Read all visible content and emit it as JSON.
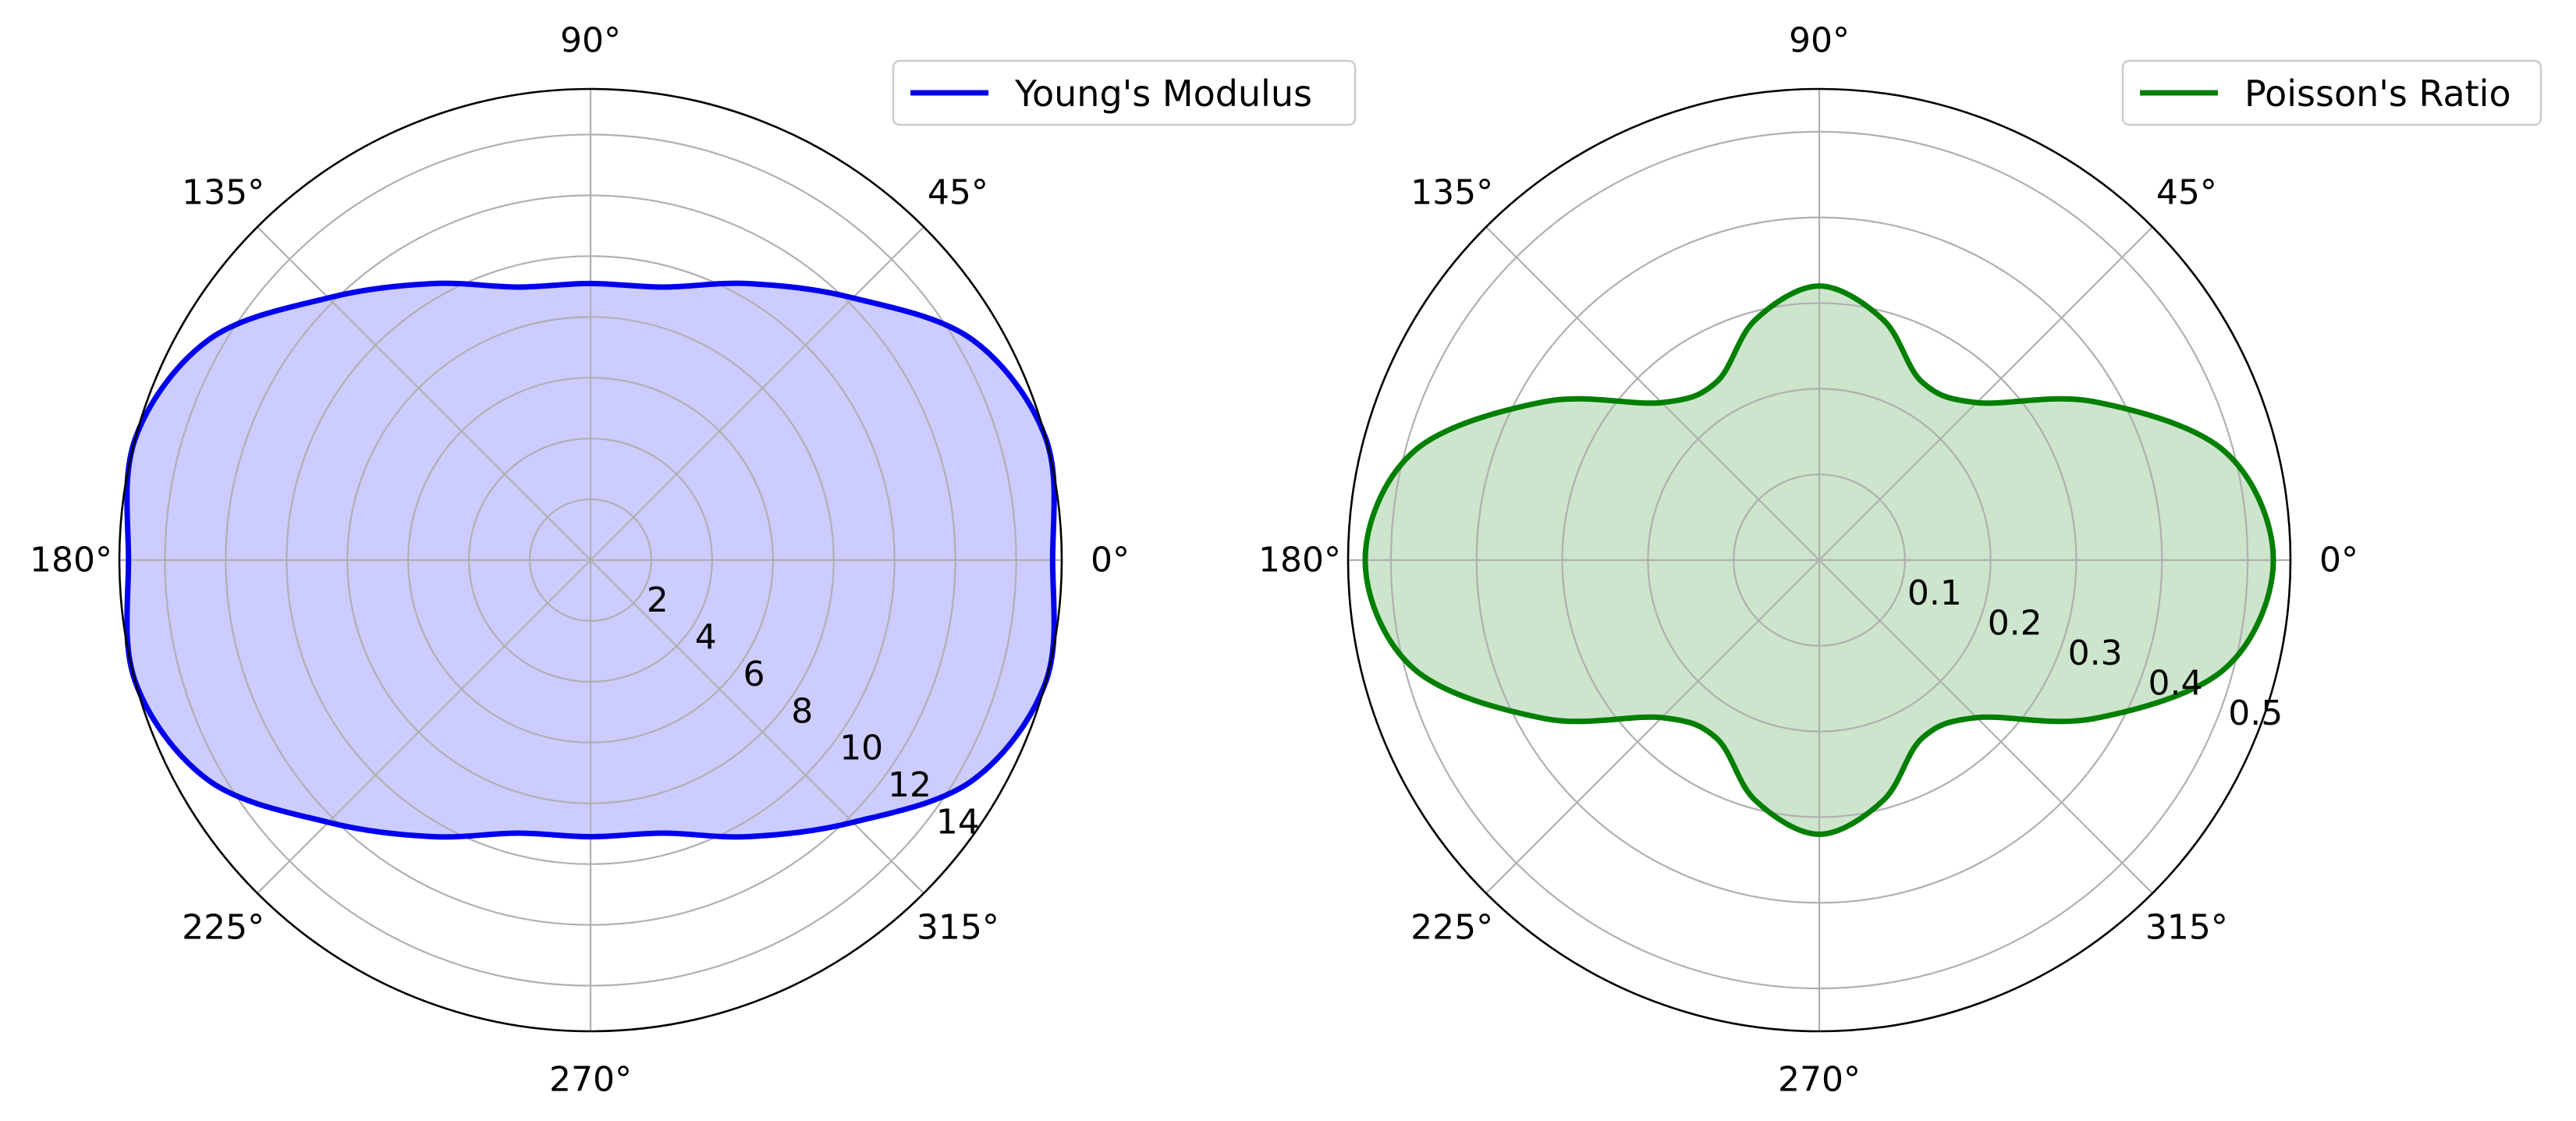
{
  "chart_data": [
    {
      "type": "polar",
      "fill": true,
      "line_color": "#0000ee",
      "fill_color": "#ccccff",
      "theta_ticks_deg": [
        0,
        45,
        90,
        135,
        180,
        225,
        270,
        315
      ],
      "theta_tick_labels": [
        "0°",
        "45°",
        "90°",
        "135°",
        "180°",
        "225°",
        "270°",
        "315°"
      ],
      "rlim": [
        0,
        15.5
      ],
      "r_ticks": [
        2,
        4,
        6,
        8,
        10,
        12,
        14
      ],
      "r_tick_labels": [
        "2",
        "4",
        "6",
        "8",
        "10",
        "12",
        "14"
      ],
      "grid": true,
      "legend": {
        "label": "Young's Modulus",
        "placement": "top-right"
      },
      "series": [
        {
          "name": "Young's Modulus",
          "theta_deg": [
            0,
            15,
            30,
            45,
            60,
            75,
            90,
            105,
            120,
            135,
            150,
            165,
            180,
            195,
            210,
            225,
            240,
            255,
            270,
            285,
            300,
            315,
            330,
            345,
            360
          ],
          "r": [
            15.2,
            15.5,
            14.5,
            12.2,
            10.5,
            9.3,
            9.1,
            9.3,
            10.5,
            12.2,
            14.5,
            15.5,
            15.2,
            15.5,
            14.5,
            12.2,
            10.5,
            9.3,
            9.1,
            9.3,
            10.5,
            12.2,
            14.5,
            15.5,
            15.2
          ]
        }
      ]
    },
    {
      "type": "polar",
      "fill": true,
      "line_color": "#007f00",
      "fill_color": "#cce5cc",
      "theta_ticks_deg": [
        0,
        45,
        90,
        135,
        180,
        225,
        270,
        315
      ],
      "theta_tick_labels": [
        "0°",
        "45°",
        "90°",
        "135°",
        "180°",
        "225°",
        "270°",
        "315°"
      ],
      "rlim": [
        0,
        0.55
      ],
      "r_ticks": [
        0.1,
        0.2,
        0.3,
        0.4,
        0.5
      ],
      "r_tick_labels": [
        "0.1",
        "0.2",
        "0.3",
        "0.4",
        "0.5"
      ],
      "grid": true,
      "legend": {
        "label": "Poisson's Ratio",
        "placement": "top-right"
      },
      "series": [
        {
          "name": "Poisson's Ratio",
          "theta_deg": [
            0,
            15,
            30,
            45,
            60,
            75,
            90,
            105,
            120,
            135,
            150,
            165,
            180,
            195,
            210,
            225,
            240,
            255,
            270,
            285,
            300,
            315,
            330,
            345,
            360
          ],
          "r": [
            0.53,
            0.49,
            0.37,
            0.26,
            0.24,
            0.29,
            0.32,
            0.29,
            0.24,
            0.26,
            0.37,
            0.49,
            0.53,
            0.49,
            0.37,
            0.26,
            0.24,
            0.29,
            0.32,
            0.29,
            0.24,
            0.26,
            0.37,
            0.49,
            0.53
          ]
        }
      ]
    }
  ]
}
